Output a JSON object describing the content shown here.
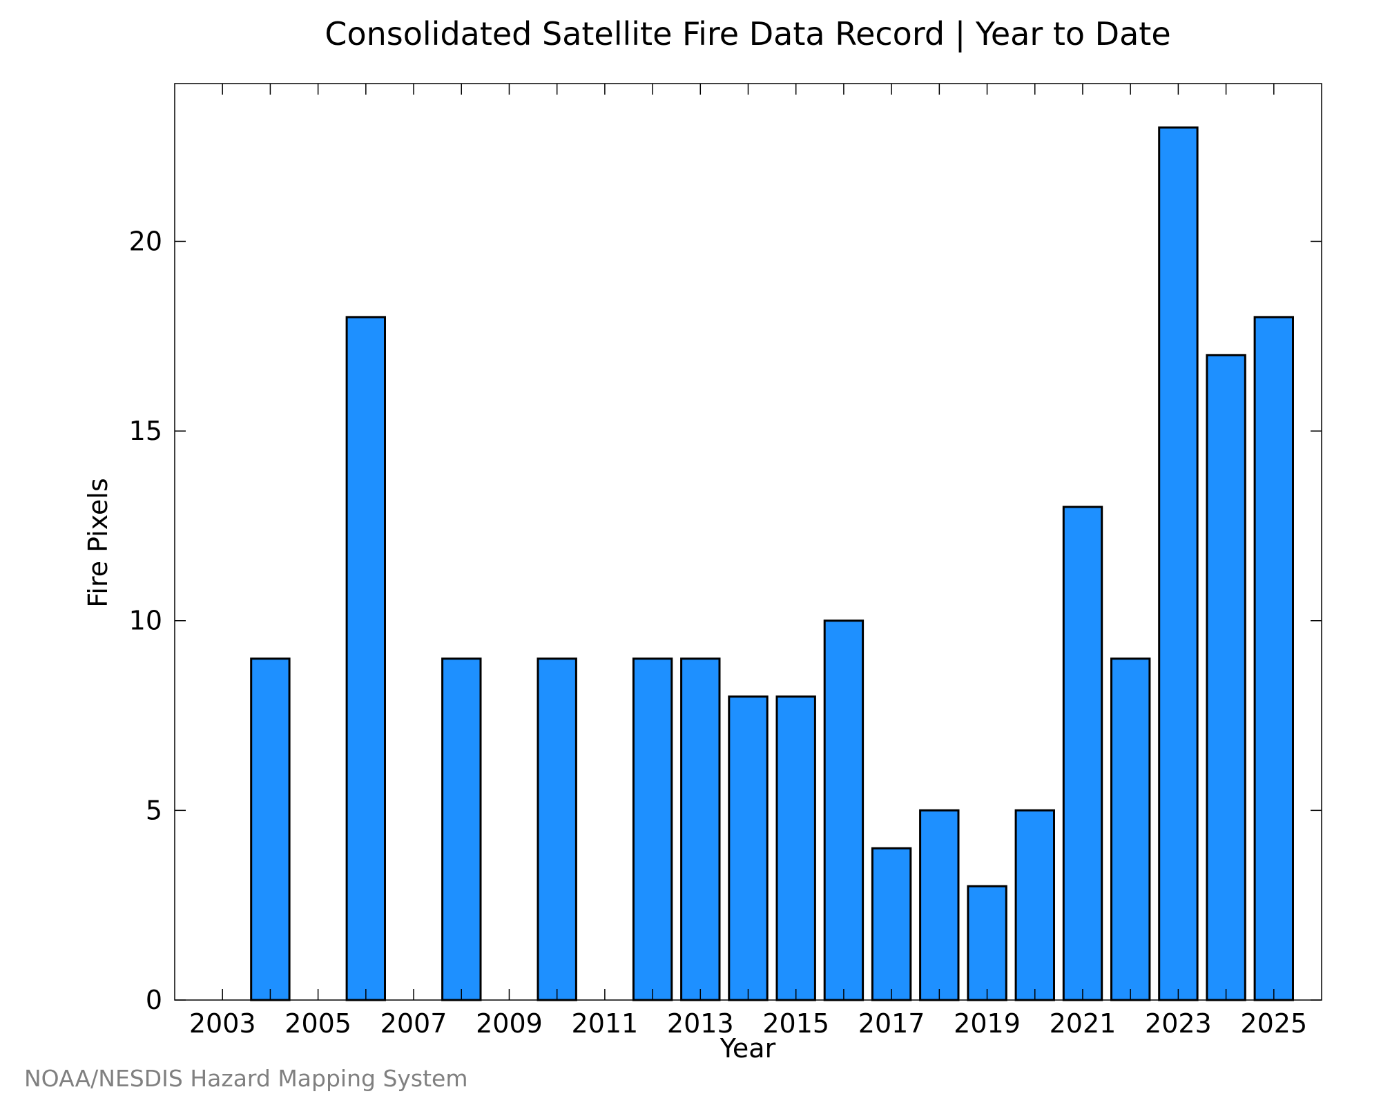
{
  "chart_data": {
    "type": "bar",
    "title": "Consolidated Satellite Fire Data Record | Year to Date",
    "xlabel": "Year",
    "ylabel": "Fire Pixels",
    "categories": [
      2003,
      2004,
      2005,
      2006,
      2007,
      2008,
      2009,
      2010,
      2011,
      2012,
      2013,
      2014,
      2015,
      2016,
      2017,
      2018,
      2019,
      2020,
      2021,
      2022,
      2023,
      2024,
      2025
    ],
    "values": [
      0,
      9,
      0,
      18,
      0,
      9,
      0,
      9,
      0,
      9,
      9,
      8,
      8,
      10,
      4,
      5,
      3,
      5,
      13,
      9,
      23,
      17,
      18
    ],
    "xlim": [
      2002,
      2026
    ],
    "ylim": [
      0,
      24.16
    ],
    "y_ticks": [
      "0",
      "5",
      "10",
      "15",
      "20"
    ],
    "x_ticks": [
      "2003",
      "2005",
      "2007",
      "2009",
      "2011",
      "2013",
      "2015",
      "2017",
      "2019",
      "2021",
      "2023",
      "2025"
    ],
    "bar_color": "#1E90FF",
    "bar_edge_color": "#000000",
    "grid": false,
    "legend": "none"
  },
  "source_credit": "NOAA/NESDIS Hazard Mapping System"
}
